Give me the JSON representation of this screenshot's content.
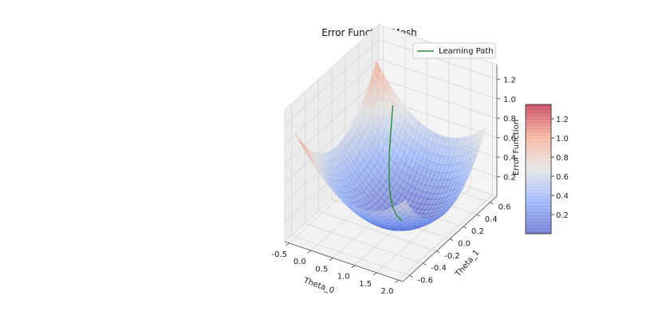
{
  "chart_data": {
    "type": "surface3d",
    "title": "Error Function Mesh",
    "xlabel": "Theta_0",
    "ylabel": "Theta_1",
    "zlabel": "Error Function",
    "x_ticks": [
      "-0.5",
      "0.0",
      "0.5",
      "1.0",
      "1.5",
      "2.0"
    ],
    "y_ticks": [
      "-0.6",
      "-0.4",
      "-0.2",
      "0.0",
      "0.2",
      "0.4",
      "0.6"
    ],
    "z_ticks": [
      "0.2",
      "0.4",
      "0.6",
      "0.8",
      "1.0",
      "1.2"
    ],
    "xlim": [
      -0.6,
      2.1
    ],
    "ylim": [
      -0.7,
      0.7
    ],
    "zlim": [
      0.0,
      1.35
    ],
    "colormap": "coolwarm",
    "colorbar": {
      "range": [
        0.0,
        1.35
      ],
      "ticks": [
        "0.2",
        "0.4",
        "0.6",
        "0.8",
        "1.0",
        "1.2"
      ]
    },
    "legend": {
      "placement": "top-right",
      "entries": [
        {
          "label": "Learning Path",
          "color": "#2e8b3a"
        }
      ]
    },
    "surface": {
      "center": [
        1.0,
        0.0
      ],
      "equation": "z = 0.24*(theta0 - 1.0)^2 + 1.4*(theta1 - 0.0)^2 + 0.01 (estimated)"
    },
    "series": [
      {
        "name": "Learning Path",
        "points": [
          [
            -0.05,
            0.55,
            0.7
          ],
          [
            0.1,
            0.42,
            0.52
          ],
          [
            0.25,
            0.3,
            0.38
          ],
          [
            0.4,
            0.2,
            0.24
          ],
          [
            0.55,
            0.12,
            0.14
          ],
          [
            0.7,
            0.06,
            0.08
          ],
          [
            0.85,
            0.02,
            0.04
          ],
          [
            1.0,
            0.0,
            0.02
          ]
        ]
      }
    ]
  }
}
